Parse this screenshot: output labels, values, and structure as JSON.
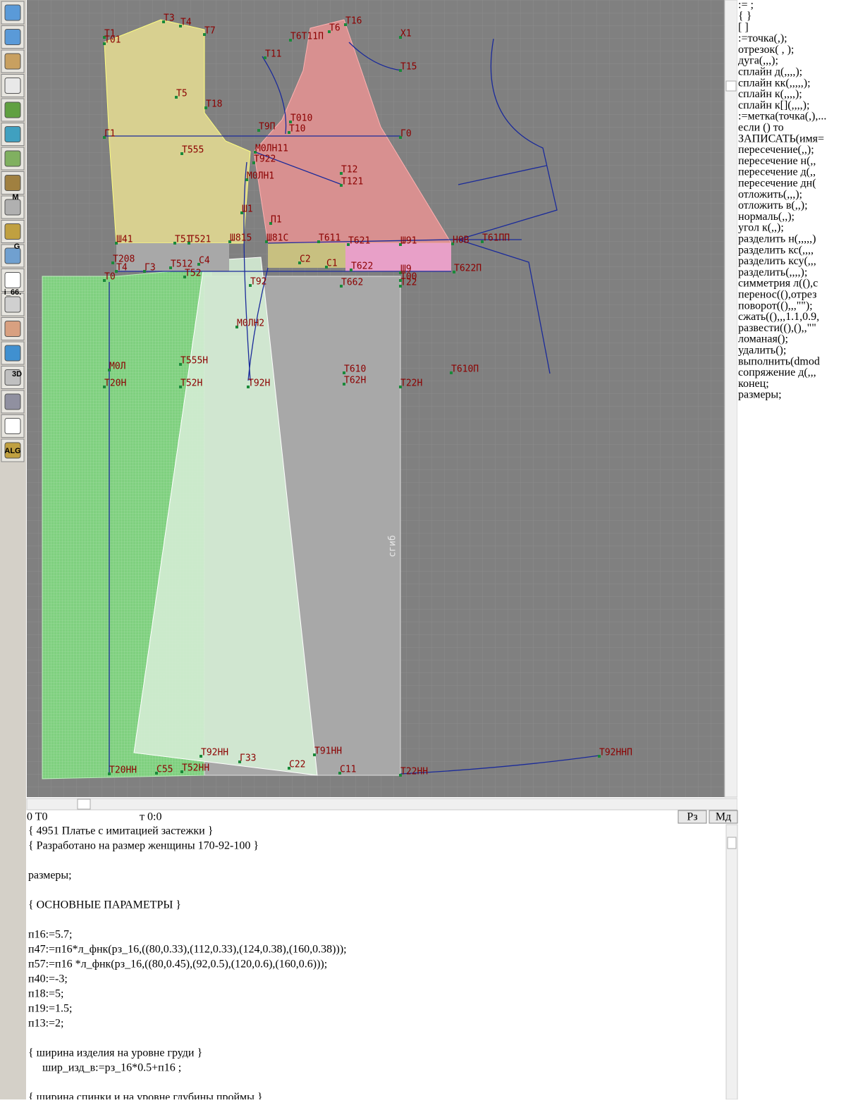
{
  "toolbar": {
    "labels": [
      "M",
      "G",
      "i_66.",
      "3D",
      "ALG"
    ]
  },
  "canvas": {
    "point_labels": [
      "T1",
      "T01",
      "T3",
      "T4",
      "T7",
      "T6",
      "T16",
      "T6T11П",
      "X1",
      "T11",
      "T15",
      "T5",
      "T18",
      "Г1",
      "T9П",
      "T010",
      "T10",
      "Г0",
      "T555",
      "M0ЛН11",
      "T922",
      "T12",
      "T121",
      "M0ЛН1",
      "Ш1",
      "П1",
      "Ш41",
      "T51",
      "T521",
      "Ш815",
      "Ш81С",
      "T611",
      "T621",
      "Ш91",
      "H0B",
      "T61ПП",
      "T208",
      "T4",
      "Г3",
      "C4",
      "C2",
      "C1",
      "T622",
      "Ш9",
      "T622П",
      "T0",
      "T512",
      "T52",
      "T92",
      "T662",
      "T00",
      "T22",
      "M0ЛН2",
      "M0Л",
      "T555H",
      "T610",
      "T610П",
      "T20H",
      "T52H",
      "T92H",
      "T62H",
      "T22H",
      "T92HH",
      "Г33",
      "T91HH",
      "C22",
      "C11",
      "T20HH",
      "C55",
      "T52HH",
      "T22HH",
      "T92HHП"
    ],
    "side_label": "сгиб"
  },
  "commands": [
    ":= ;",
    "{  }",
    "[  ]",
    ":=точка(,);",
    "отрезок( , );",
    "дуга(,,,);",
    "сплайн  д(,,,,);",
    "сплайн  кк(,,,,,);",
    "сплайн  к(,,,,);",
    "сплайн  к[](,,,,);",
    ":=метка(точка(,),...",
    "если () то",
    "ЗАПИСАТЬ(имя=",
    "пересечение(,,);",
    "пересечение  н(,,",
    "пересечение  д(,,",
    "пересечение  дн(",
    "отложить(,,,);",
    "отложить  в(,,);",
    "нормаль(,,);",
    "угол  к(,,);",
    "разделить  н(,,,,,)",
    "разделить  кс(,,,,",
    "разделить  ксу(,,,",
    "разделить(,,,,);",
    "симметрия  л((),с",
    "перенос((),отрез",
    "поворот((),,,\"\");",
    "сжать((),,,1.1,0.9,",
    "развести((),(),,\"\"",
    "ломаная();",
    "удалить();",
    "выполнить(dmod",
    "сопряжение  д(,,,",
    "конец;",
    "размеры;"
  ],
  "status": {
    "position": "0  T0",
    "time": "т 0:0",
    "buttons": [
      "Рз",
      "Мд"
    ]
  },
  "code": [
    "{ 4951 Платье с имитацией застежки }",
    "{ Разработано на размер женщины 170-92-100 }",
    "размеры;",
    "{ ОСНОВНЫЕ ПАРАМЕТРЫ }",
    "п16:=5.7;",
    "п47:=п16*л_фнк(рз_16,((80,0.33),(112,0.33),(124,0.38),(160,0.38)));",
    "п57:=п16 *л_фнк(рз_16,((80,0.45),(92,0.5),(120,0.6),(160,0.6)));",
    "п40:=-3;",
    "п18:=5;",
    "п19:=1.5;",
    "п13:=2;",
    "{ ширина изделия на уровне груди }",
    "     шир_изд_в:=рз_16*0.5+п16 ;",
    "{ ширина спинки и на уровне глубины проймы }"
  ]
}
